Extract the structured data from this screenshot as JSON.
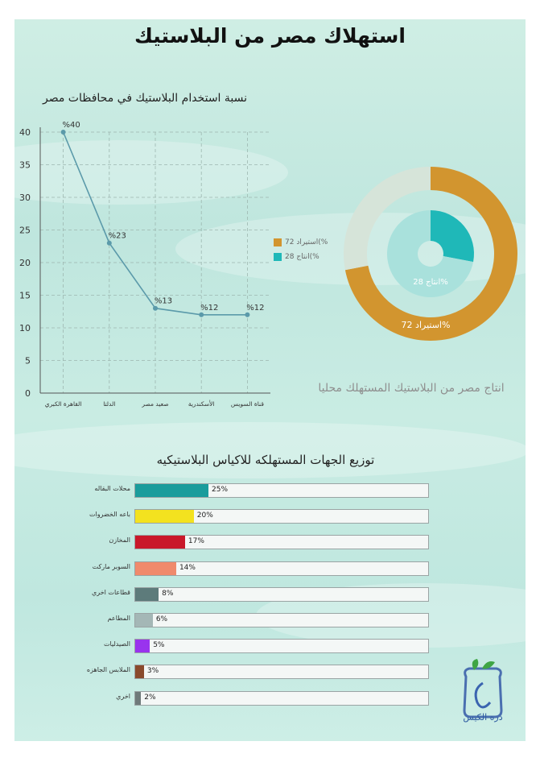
{
  "page": {
    "title": "استهلاك مصر من البلاستيك",
    "logo_text": "دره الكيس"
  },
  "colors": {
    "line": "#5b9aaa",
    "grid": "#9db7b0",
    "donut_outer_a": "#d2952f",
    "donut_outer_b": "#d6e4d9",
    "donut_inner_a": "#1fb8b8",
    "donut_inner_b": "#a9e1dc"
  },
  "chart_data": [
    {
      "type": "line",
      "title": "نسبة استخدام البلاستيك في محافظات مصر",
      "categories": [
        "القاهرة الكبري",
        "الدلتا",
        "صعيد مصر",
        "الأسكندرية",
        "قناة السويس"
      ],
      "values": [
        40,
        23,
        13,
        12,
        12
      ],
      "point_labels": [
        "%40",
        "%23",
        "%13",
        "%12",
        "%12"
      ],
      "y_ticks": [
        "0",
        "5",
        "10",
        "15",
        "20",
        "25",
        "30",
        "35",
        "40"
      ],
      "ylim": [
        0,
        40
      ],
      "grid": true
    },
    {
      "type": "pie",
      "title": "انتاج مصر من البلاستيك المستهلك محليا",
      "legend": [
        "استيراد 72(%",
        "انتاج 28(%"
      ],
      "outer": {
        "label": "استيراد 72%",
        "value": 72
      },
      "inner": {
        "label": "انتاج 28%",
        "value": 28
      }
    },
    {
      "type": "bar",
      "title": "توزيع الجهات المستهلكه للاكياس البلاستيكيه",
      "categories": [
        "محلات البقاله",
        "باعه الخضروات",
        "المخازن",
        "السوبر ماركت",
        "قطاعات اخري",
        "المطاعم",
        "الصيدليات",
        "الملابس الجاهزه",
        "اخري"
      ],
      "values": [
        25,
        20,
        17,
        14,
        8,
        6,
        5,
        3,
        2
      ],
      "labels": [
        "25%",
        "20%",
        "17%",
        "14%",
        "8%",
        "6%",
        "5%",
        "3%",
        "2%"
      ],
      "colors": [
        "#1a9c9c",
        "#f3e21f",
        "#c9182a",
        "#f08a6c",
        "#5d7b7b",
        "#a4b7b6",
        "#9933ee",
        "#8a4a2c",
        "#6f7a7a"
      ],
      "xlim": [
        0,
        100
      ]
    }
  ]
}
